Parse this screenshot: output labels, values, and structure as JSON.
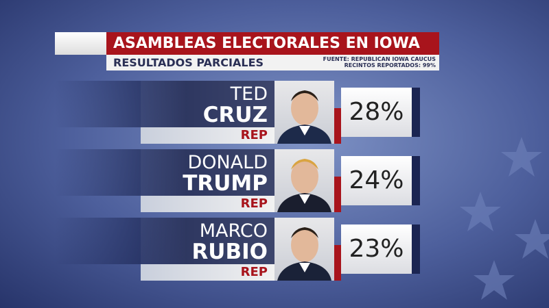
{
  "header": {
    "title": "ASAMBLEAS ELECTORALES EN IOWA",
    "subtitle": "RESULTADOS PARCIALES",
    "source": "FUENTE: REPUBLICAN IOWA CAUCUS",
    "reported": "RECINTOS REPORTADOS: 99%"
  },
  "candidates": [
    {
      "first": "TED",
      "last": "CRUZ",
      "party": "REP",
      "result": "28%"
    },
    {
      "first": "DONALD",
      "last": "TRUMP",
      "party": "REP",
      "result": "24%"
    },
    {
      "first": "MARCO",
      "last": "RUBIO",
      "party": "REP",
      "result": "23%"
    }
  ]
}
